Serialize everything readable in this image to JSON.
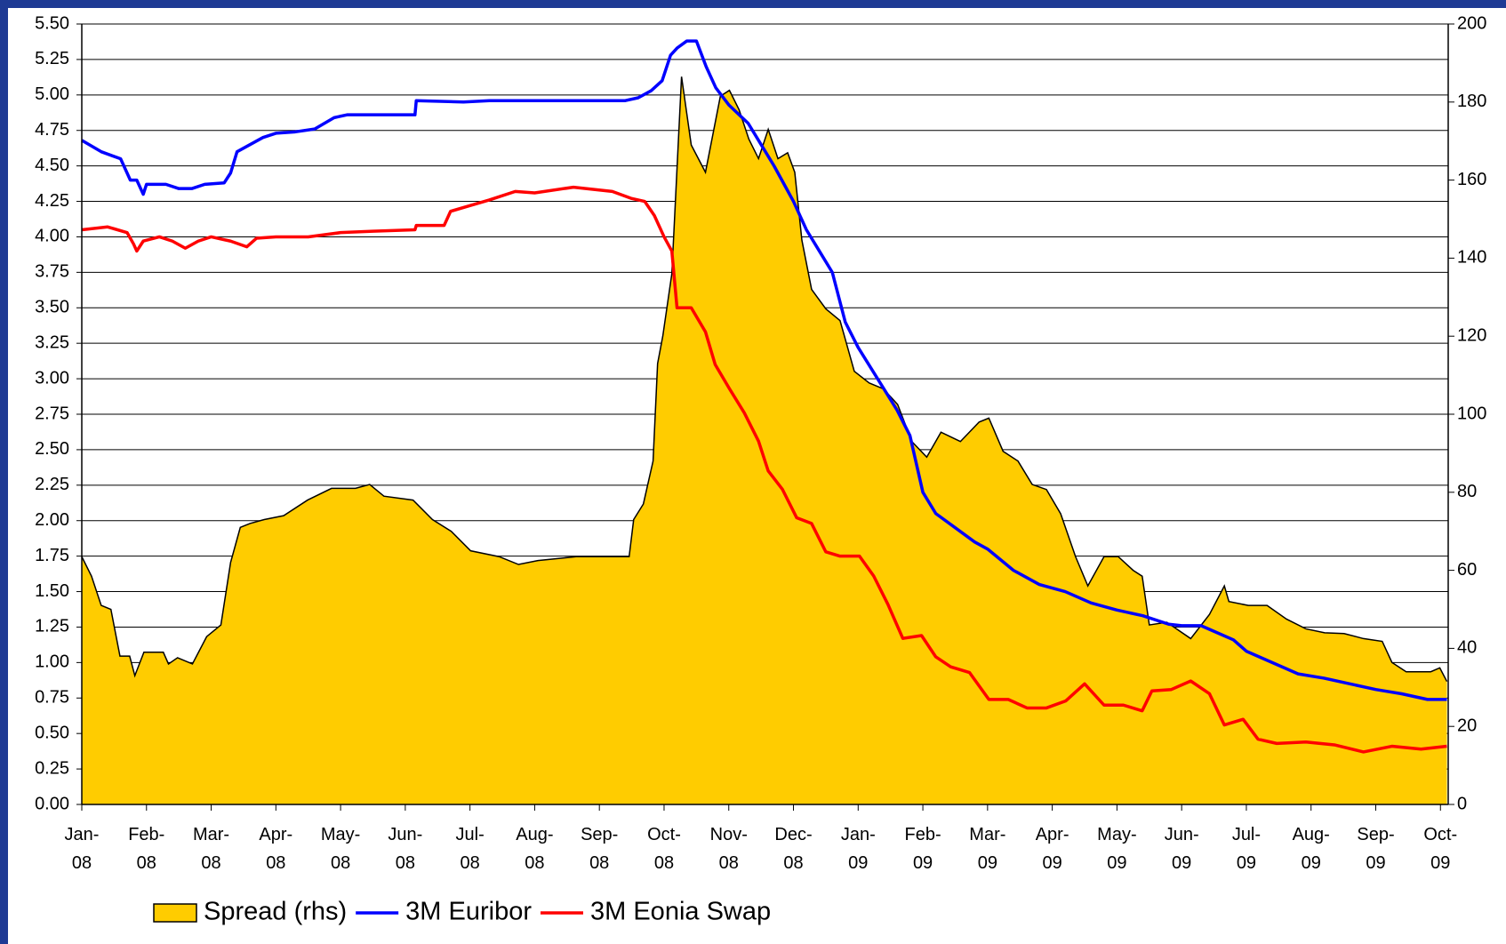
{
  "chart_data": {
    "type": "line",
    "xlim": [
      0,
      21.12
    ],
    "xticks": [
      {
        "value": 0,
        "label": "Jan-\n08"
      },
      {
        "value": 1,
        "label": "Feb-\n08"
      },
      {
        "value": 2,
        "label": "Mar-\n08"
      },
      {
        "value": 3,
        "label": "Apr-\n08"
      },
      {
        "value": 4,
        "label": "May-\n08"
      },
      {
        "value": 5,
        "label": "Jun-\n08"
      },
      {
        "value": 6,
        "label": "Jul-\n08"
      },
      {
        "value": 7,
        "label": "Aug-\n08"
      },
      {
        "value": 8,
        "label": "Sep-\n08"
      },
      {
        "value": 9,
        "label": "Oct-\n08"
      },
      {
        "value": 10,
        "label": "Nov-\n08"
      },
      {
        "value": 11,
        "label": "Dec-\n08"
      },
      {
        "value": 12,
        "label": "Jan-\n09"
      },
      {
        "value": 13,
        "label": "Feb-\n09"
      },
      {
        "value": 14,
        "label": "Mar-\n09"
      },
      {
        "value": 15,
        "label": "Apr-\n09"
      },
      {
        "value": 16,
        "label": "May-\n09"
      },
      {
        "value": 17,
        "label": "Jun-\n09"
      },
      {
        "value": 18,
        "label": "Jul-\n09"
      },
      {
        "value": 19,
        "label": "Aug-\n09"
      },
      {
        "value": 20,
        "label": "Sep-\n09"
      },
      {
        "value": 21,
        "label": "Oct-\n09"
      }
    ],
    "ylim": [
      0,
      5.5
    ],
    "yticks": [
      {
        "value": 0,
        "label": "0.00"
      },
      {
        "value": 0.25,
        "label": "0.25"
      },
      {
        "value": 0.5,
        "label": "0.50"
      },
      {
        "value": 0.75,
        "label": "0.75"
      },
      {
        "value": 1,
        "label": "1.00"
      },
      {
        "value": 1.25,
        "label": "1.25"
      },
      {
        "value": 1.5,
        "label": "1.50"
      },
      {
        "value": 1.75,
        "label": "1.75"
      },
      {
        "value": 2,
        "label": "2.00"
      },
      {
        "value": 2.25,
        "label": "2.25"
      },
      {
        "value": 2.5,
        "label": "2.50"
      },
      {
        "value": 2.75,
        "label": "2.75"
      },
      {
        "value": 3,
        "label": "3.00"
      },
      {
        "value": 3.25,
        "label": "3.25"
      },
      {
        "value": 3.5,
        "label": "3.50"
      },
      {
        "value": 3.75,
        "label": "3.75"
      },
      {
        "value": 4,
        "label": "4.00"
      },
      {
        "value": 4.25,
        "label": "4.25"
      },
      {
        "value": 4.5,
        "label": "4.50"
      },
      {
        "value": 4.75,
        "label": "4.75"
      },
      {
        "value": 5,
        "label": "5.00"
      },
      {
        "value": 5.25,
        "label": "5.25"
      },
      {
        "value": 5.5,
        "label": "5.50"
      }
    ],
    "y2lim": [
      0,
      200
    ],
    "y2ticks": [
      0,
      20,
      40,
      60,
      80,
      100,
      120,
      140,
      160,
      180,
      200
    ],
    "grid": true,
    "legend": "bottom",
    "series": [
      {
        "name": "Spread (rhs)",
        "type": "area",
        "axis": "y2",
        "color": "#ffcc00",
        "x": [
          0,
          0.15,
          0.3,
          0.45,
          0.52,
          0.59,
          0.74,
          0.82,
          0.96,
          1.26,
          1.34,
          1.48,
          1.71,
          1.93,
          2.15,
          2.3,
          2.45,
          2.6,
          2.82,
          3.12,
          3.49,
          3.86,
          4.23,
          4.45,
          4.67,
          5.12,
          5.42,
          5.71,
          6.01,
          6.45,
          6.75,
          7.05,
          7.64,
          8.23,
          8.46,
          8.53,
          8.68,
          8.83,
          8.9,
          8.98,
          9.12,
          9.27,
          9.42,
          9.64,
          9.87,
          10.01,
          10.16,
          10.31,
          10.46,
          10.61,
          10.76,
          10.91,
          11.02,
          11.13,
          11.28,
          11.5,
          11.72,
          11.94,
          12.17,
          12.39,
          12.61,
          12.83,
          13.06,
          13.28,
          13.58,
          13.87,
          14.02,
          14.24,
          14.47,
          14.69,
          14.91,
          15.13,
          15.36,
          15.55,
          15.8,
          16.02,
          16.25,
          16.39,
          16.5,
          16.77,
          17.14,
          17.43,
          17.66,
          17.73,
          18.03,
          18.32,
          18.62,
          18.92,
          19.21,
          19.51,
          19.81,
          20.1,
          20.25,
          20.47,
          20.85,
          20.99,
          21.1
        ],
        "values": [
          63.5,
          58.5,
          51,
          50,
          44,
          38,
          38,
          33,
          39,
          39,
          36,
          37.6,
          36,
          43,
          46,
          62,
          71,
          72,
          73,
          74,
          78,
          81,
          81,
          82,
          79,
          78,
          73,
          70,
          65,
          63.5,
          61.5,
          62.5,
          63.5,
          63.5,
          63.5,
          73,
          77,
          88,
          113,
          120,
          136,
          186.5,
          169,
          162,
          181.5,
          183,
          178,
          170.5,
          165.5,
          173,
          165.5,
          167,
          162,
          144.6,
          132,
          127,
          124,
          111,
          108,
          106.5,
          102.5,
          93,
          89,
          95.4,
          93,
          98,
          99,
          90.5,
          88,
          82,
          80.7,
          74.5,
          63.5,
          56,
          63.5,
          63.5,
          60,
          58.5,
          46,
          46.7,
          42.5,
          48.7,
          56,
          52,
          51,
          51,
          47.5,
          45,
          44,
          43.8,
          42.5,
          41.8,
          36.4,
          34,
          34,
          35,
          31.5
        ]
      },
      {
        "name": "3M Euribor",
        "type": "line",
        "color": "#0000ff",
        "x": [
          0,
          0.3,
          0.6,
          0.75,
          0.85,
          0.95,
          1,
          1.3,
          1.5,
          1.7,
          1.9,
          2.2,
          2.3,
          2.4,
          2.6,
          2.8,
          3,
          3.3,
          3.6,
          3.9,
          4.1,
          5.15,
          5.17,
          5.9,
          6.3,
          8.4,
          8.6,
          8.8,
          8.97,
          9.1,
          9.2,
          9.35,
          9.5,
          9.65,
          9.8,
          10,
          10.3,
          10.5,
          10.7,
          11,
          11.2,
          11.4,
          11.6,
          11.8,
          12,
          12.3,
          12.6,
          12.8,
          13,
          13.2,
          13.5,
          13.8,
          14,
          14.4,
          14.8,
          15.2,
          15.6,
          16,
          16.4,
          16.8,
          17,
          17.3,
          17.5,
          17.8,
          18,
          18.4,
          18.8,
          19.2,
          19.6,
          20,
          20.4,
          20.8,
          21.1
        ],
        "values": [
          4.68,
          4.6,
          4.55,
          4.4,
          4.4,
          4.3,
          4.37,
          4.37,
          4.34,
          4.34,
          4.37,
          4.38,
          4.45,
          4.6,
          4.65,
          4.7,
          4.73,
          4.74,
          4.76,
          4.84,
          4.86,
          4.86,
          4.96,
          4.95,
          4.96,
          4.96,
          4.98,
          5.03,
          5.1,
          5.28,
          5.33,
          5.38,
          5.38,
          5.2,
          5.05,
          4.93,
          4.8,
          4.65,
          4.5,
          4.25,
          4.05,
          3.9,
          3.75,
          3.4,
          3.22,
          3,
          2.78,
          2.6,
          2.2,
          2.05,
          1.95,
          1.85,
          1.8,
          1.65,
          1.55,
          1.5,
          1.42,
          1.37,
          1.33,
          1.27,
          1.26,
          1.26,
          1.22,
          1.16,
          1.08,
          1,
          0.92,
          0.89,
          0.85,
          0.81,
          0.78,
          0.74,
          0.74
        ]
      },
      {
        "name": "3M Eonia Swap",
        "type": "line",
        "color": "#ff0000",
        "x": [
          0,
          0.4,
          0.7,
          0.8,
          0.85,
          0.95,
          1.2,
          1.4,
          1.6,
          1.8,
          2,
          2.3,
          2.55,
          2.7,
          3,
          3.5,
          4,
          4.5,
          5.15,
          5.17,
          5.6,
          5.7,
          6,
          6.3,
          6.7,
          7,
          7.6,
          8.2,
          8.5,
          8.7,
          8.85,
          9,
          9.12,
          9.2,
          9.42,
          9.64,
          9.79,
          10.01,
          10.24,
          10.46,
          10.61,
          10.83,
          11.05,
          11.28,
          11.5,
          11.72,
          12.02,
          12.24,
          12.46,
          12.69,
          12.98,
          13.2,
          13.43,
          13.72,
          14.02,
          14.32,
          14.61,
          14.91,
          15.21,
          15.5,
          15.8,
          16.1,
          16.39,
          16.54,
          16.84,
          17.14,
          17.43,
          17.66,
          17.95,
          18.18,
          18.47,
          18.92,
          19.36,
          19.81,
          20.25,
          20.7,
          21.1
        ],
        "values": [
          4.05,
          4.07,
          4.03,
          3.95,
          3.9,
          3.97,
          4,
          3.97,
          3.92,
          3.97,
          4,
          3.97,
          3.93,
          3.99,
          4,
          4,
          4.03,
          4.04,
          4.05,
          4.08,
          4.08,
          4.18,
          4.22,
          4.26,
          4.32,
          4.31,
          4.35,
          4.32,
          4.27,
          4.25,
          4.15,
          4,
          3.9,
          3.5,
          3.5,
          3.33,
          3.1,
          2.93,
          2.76,
          2.56,
          2.35,
          2.22,
          2.02,
          1.98,
          1.78,
          1.75,
          1.75,
          1.61,
          1.41,
          1.17,
          1.19,
          1.04,
          0.97,
          0.93,
          0.74,
          0.74,
          0.68,
          0.68,
          0.73,
          0.85,
          0.7,
          0.7,
          0.66,
          0.8,
          0.81,
          0.87,
          0.78,
          0.56,
          0.6,
          0.46,
          0.43,
          0.44,
          0.42,
          0.37,
          0.41,
          0.39,
          0.41
        ]
      }
    ]
  }
}
